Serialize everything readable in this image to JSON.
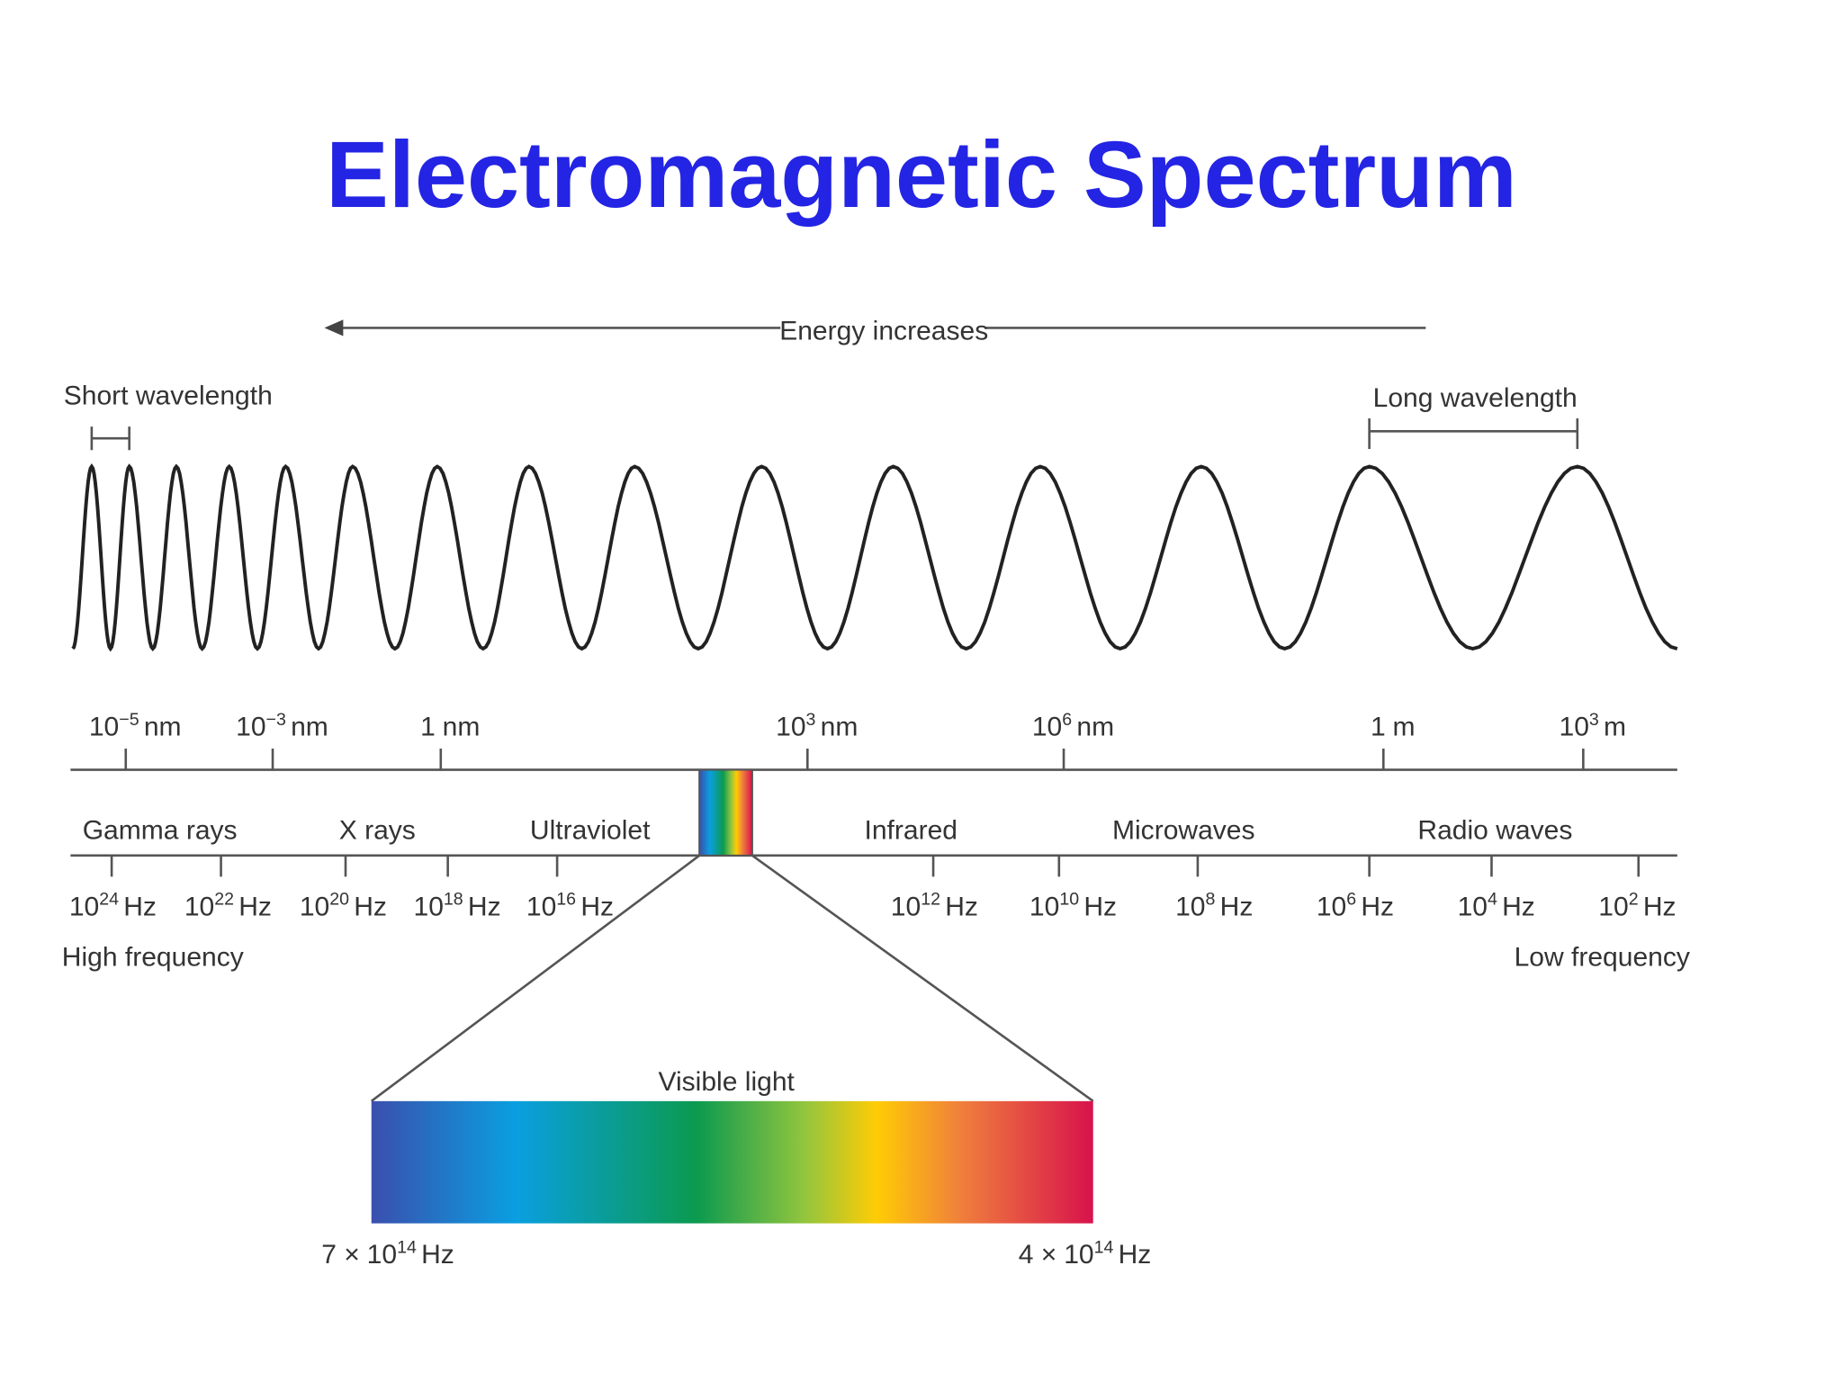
{
  "title": "Electromagnetic Spectrum",
  "energy_label": "Energy increases",
  "short_wavelength": "Short wavelength",
  "long_wavelength": "Long wavelength",
  "wavelength_ticks": [
    {
      "base": "10",
      "exp": "−5",
      "unit": "nm"
    },
    {
      "base": "10",
      "exp": "−3",
      "unit": "nm"
    },
    {
      "base": "1",
      "unit": "nm"
    },
    {
      "base": "10",
      "exp": "3",
      "unit": "nm"
    },
    {
      "base": "10",
      "exp": "6",
      "unit": "nm"
    },
    {
      "base": "1",
      "unit": "m"
    },
    {
      "base": "10",
      "exp": "3",
      "unit": "m"
    }
  ],
  "bands": [
    "Gamma rays",
    "X rays",
    "Ultraviolet",
    "Infrared",
    "Microwaves",
    "Radio waves"
  ],
  "frequency_ticks": [
    {
      "base": "10",
      "exp": "24",
      "unit": "Hz"
    },
    {
      "base": "10",
      "exp": "22",
      "unit": "Hz"
    },
    {
      "base": "10",
      "exp": "20",
      "unit": "Hz"
    },
    {
      "base": "10",
      "exp": "18",
      "unit": "Hz"
    },
    {
      "base": "10",
      "exp": "16",
      "unit": "Hz"
    },
    {
      "base": "10",
      "exp": "12",
      "unit": "Hz"
    },
    {
      "base": "10",
      "exp": "10",
      "unit": "Hz"
    },
    {
      "base": "10",
      "exp": "8",
      "unit": "Hz"
    },
    {
      "base": "10",
      "exp": "6",
      "unit": "Hz"
    },
    {
      "base": "10",
      "exp": "4",
      "unit": "Hz"
    },
    {
      "base": "10",
      "exp": "2",
      "unit": "Hz"
    }
  ],
  "high_frequency": "High frequency",
  "low_frequency": "Low frequency",
  "visible_light": {
    "label": "Visible light",
    "left": {
      "mantissa": "7 ×",
      "base": "10",
      "exp": "14",
      "unit": "Hz"
    },
    "right": {
      "mantissa": "4 ×",
      "base": "10",
      "exp": "14",
      "unit": "Hz"
    }
  }
}
